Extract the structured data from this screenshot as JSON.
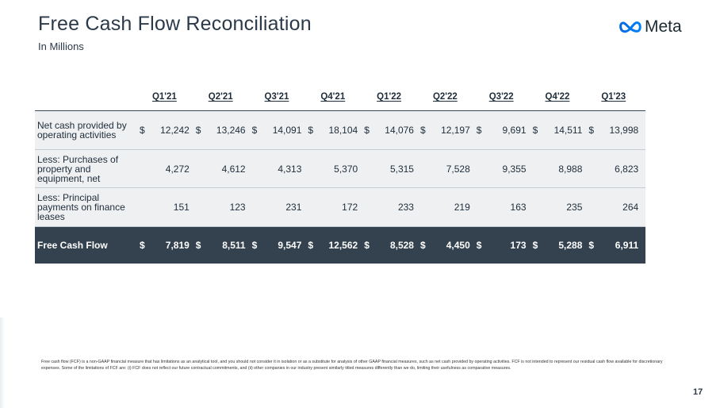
{
  "header": {
    "title": "Free Cash Flow Reconciliation",
    "subtitle": "In Millions",
    "logo_text": "Meta"
  },
  "table": {
    "columns": [
      "Q1'21",
      "Q2'21",
      "Q3'21",
      "Q4'21",
      "Q1'22",
      "Q2'22",
      "Q3'22",
      "Q4'22",
      "Q1'23"
    ],
    "rows": [
      {
        "label": "Net cash provided by operating activities",
        "currency": "$",
        "values": [
          "12,242",
          "13,246",
          "14,091",
          "18,104",
          "14,076",
          "12,197",
          "9,691",
          "14,511",
          "13,998"
        ]
      },
      {
        "label": "Less: Purchases of property and equipment, net",
        "currency": "",
        "values": [
          "4,272",
          "4,612",
          "4,313",
          "5,370",
          "5,315",
          "7,528",
          "9,355",
          "8,988",
          "6,823"
        ]
      },
      {
        "label": "Less: Principal payments on finance leases",
        "currency": "",
        "values": [
          "151",
          "123",
          "231",
          "172",
          "233",
          "219",
          "163",
          "235",
          "264"
        ]
      },
      {
        "label": "Free Cash Flow",
        "currency": "$",
        "values": [
          "7,819",
          "8,511",
          "9,547",
          "12,562",
          "8,528",
          "4,450",
          "173",
          "5,288",
          "6,911"
        ]
      }
    ]
  },
  "footnote": "Free cash flow (FCF) is a non-GAAP financial measure that has limitations as an analytical tool, and you should not consider it in isolation or as a substitute for analysis of other GAAP financial measures, such as net cash provided by operating activities. FCF is not intended to represent our residual cash flow available for discretionary expenses. Some of the limitations of FCF are: (i) FCF does not reflect our future contractual commitments, and (ii) other companies in our industry present similarly titled measures differently than we do, limiting their usefulness as comparative measures.",
  "page_number": "17",
  "colors": {
    "total_row_bg": "#34424f",
    "row_bg": "#eef0f2",
    "logo_blue": "#0866ff"
  }
}
